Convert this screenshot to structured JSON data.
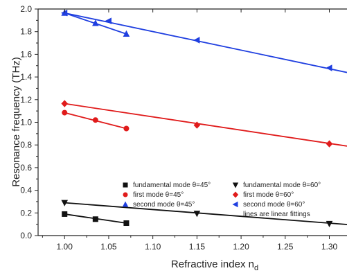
{
  "chart_data": {
    "type": "scatter",
    "title": "",
    "xlabel": "Refractive index n",
    "xlabel_subscript": "d",
    "ylabel": "Resonance frequency (THz)",
    "xlim": [
      0.97,
      1.32
    ],
    "ylim": [
      0.0,
      2.0
    ],
    "x_ticks": [
      1.0,
      1.05,
      1.1,
      1.15,
      1.2,
      1.25,
      1.3
    ],
    "x_tick_labels": [
      "1.00",
      "1.05",
      "1.10",
      "1.15",
      "1.20",
      "1.25",
      "1.30"
    ],
    "y_ticks": [
      0.0,
      0.2,
      0.4,
      0.6,
      0.8,
      1.0,
      1.2,
      1.4,
      1.6,
      1.8,
      2.0
    ],
    "y_tick_labels": [
      "0.0",
      "0.2",
      "0.4",
      "0.6",
      "0.8",
      "1.0",
      "1.2",
      "1.4",
      "1.6",
      "1.8",
      "2.0"
    ],
    "grid": false,
    "legend_placement": "lower-right",
    "series": [
      {
        "name": "fundamental mode θ=45°",
        "marker": "square",
        "color": "#111111",
        "x": [
          1.0,
          1.035,
          1.07
        ],
        "y": [
          0.19,
          0.145,
          0.11
        ]
      },
      {
        "name": "first mode θ=45°",
        "marker": "circle",
        "color": "#e01b1b",
        "x": [
          1.0,
          1.035,
          1.07
        ],
        "y": [
          1.085,
          1.02,
          0.945
        ]
      },
      {
        "name": "second mode θ=45°",
        "marker": "triangle-up",
        "color": "#1f3fe0",
        "x": [
          1.0,
          1.035,
          1.07
        ],
        "y": [
          1.965,
          1.875,
          1.78
        ]
      },
      {
        "name": "fundamental mode θ=60°",
        "marker": "triangle-down",
        "color": "#111111",
        "x": [
          1.0,
          1.15,
          1.3
        ],
        "y": [
          0.29,
          0.195,
          0.105
        ]
      },
      {
        "name": "first mode θ=60°",
        "marker": "diamond",
        "color": "#e01b1b",
        "x": [
          1.0,
          1.15,
          1.3
        ],
        "y": [
          1.165,
          0.975,
          0.81
        ]
      },
      {
        "name": "second mode θ=60°",
        "marker": "triangle-left",
        "color": "#1f3fe0",
        "x": [
          1.0,
          1.05,
          1.15,
          1.3
        ],
        "y": [
          1.965,
          1.895,
          1.725,
          1.48
        ]
      }
    ],
    "fit_lines": [
      {
        "color": "#111111",
        "x": [
          1.0,
          1.07
        ],
        "y": [
          0.19,
          0.11
        ]
      },
      {
        "color": "#e01b1b",
        "x": [
          1.0,
          1.07
        ],
        "y": [
          1.085,
          0.945
        ]
      },
      {
        "color": "#1f3fe0",
        "x": [
          1.0,
          1.07
        ],
        "y": [
          1.965,
          1.78
        ]
      },
      {
        "color": "#111111",
        "x": [
          1.0,
          1.32
        ],
        "y": [
          0.29,
          0.098
        ]
      },
      {
        "color": "#e01b1b",
        "x": [
          1.0,
          1.32
        ],
        "y": [
          1.165,
          0.79
        ]
      },
      {
        "color": "#1f3fe0",
        "x": [
          1.0,
          1.32
        ],
        "y": [
          1.965,
          1.44
        ]
      }
    ],
    "legend_note": "lines are linear fittings"
  }
}
